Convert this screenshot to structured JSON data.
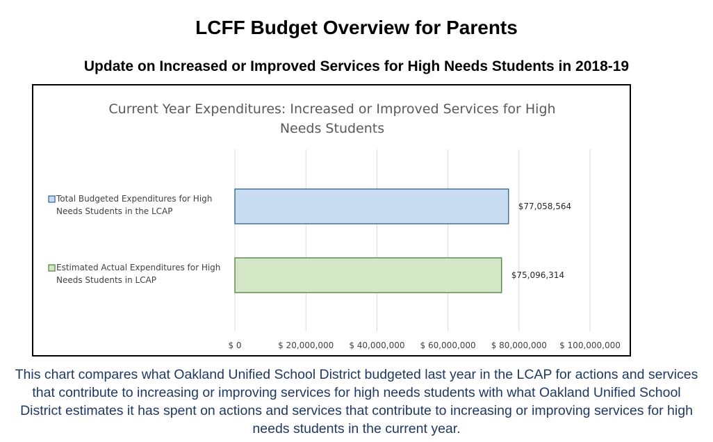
{
  "page": {
    "title": "LCFF Budget Overview for Parents",
    "subtitle": "Update on Increased or Improved Services for High Needs Students in 2018-19",
    "caption": "This chart compares what Oakland Unified School District budgeted last year in the LCAP for actions and services that contribute to increasing or improving services for high needs students with what  Oakland Unified School District estimates it has spent on actions and services that contribute to increasing or improving services for high needs students in the current year."
  },
  "chart_data": {
    "type": "bar",
    "orientation": "horizontal",
    "title": "Current Year Expenditures: Increased or Improved Services for High Needs Students",
    "categories": [
      "Total Budgeted Expenditures for High Needs Students in the LCAP",
      "Estimated Actual Expenditures for High Needs Students in LCAP"
    ],
    "category_lines": [
      [
        "Total Budgeted Expenditures for High",
        "Needs Students in the LCAP"
      ],
      [
        "Estimated Actual Expenditures for High",
        "Needs Students in LCAP"
      ]
    ],
    "values": [
      77058564,
      75096314
    ],
    "data_labels": [
      "$77,058,564",
      "$75,096,314"
    ],
    "colors": [
      {
        "fill": "#c9ddf2",
        "stroke": "#2e5f8a"
      },
      {
        "fill": "#d3e6c6",
        "stroke": "#4e7d3a"
      }
    ],
    "xlim": [
      0,
      100000000
    ],
    "xticks": [
      0,
      20000000,
      40000000,
      60000000,
      80000000,
      100000000
    ],
    "xtick_labels": [
      "$ 0",
      "$ 20,000,000",
      "$ 40,000,000",
      "$ 60,000,000",
      "$ 80,000,000",
      "$ 100,000,000"
    ],
    "grid": "vertical",
    "legend": "none"
  }
}
